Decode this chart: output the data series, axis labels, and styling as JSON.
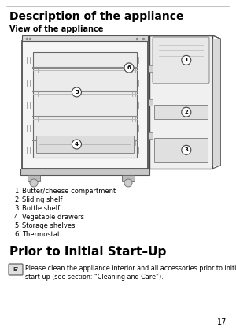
{
  "page_number": "17",
  "title": "Description of the appliance",
  "subtitle": "View of the appliance",
  "items": [
    [
      "1",
      "Butter/cheese compartment"
    ],
    [
      "2",
      "Sliding shelf"
    ],
    [
      "3",
      "Bottle shelf"
    ],
    [
      "4",
      "Vegetable drawers"
    ],
    [
      "5",
      "Storage shelves"
    ],
    [
      "6",
      "Thermostat"
    ]
  ],
  "section2_title": "Prior to Initial Start–Up",
  "section2_line1": "Please clean the appliance interior and all accessories prior to initial",
  "section2_line2": "start-up (see section: “Cleaning and Care”).",
  "bg_color": "#ffffff",
  "text_color": "#000000",
  "gray_dark": "#555555",
  "gray_mid": "#888888",
  "gray_light": "#cccccc",
  "fridge_fill": "#f5f5f5",
  "inner_fill": "#e8e8e8",
  "shelf_color": "#aaaaaa"
}
